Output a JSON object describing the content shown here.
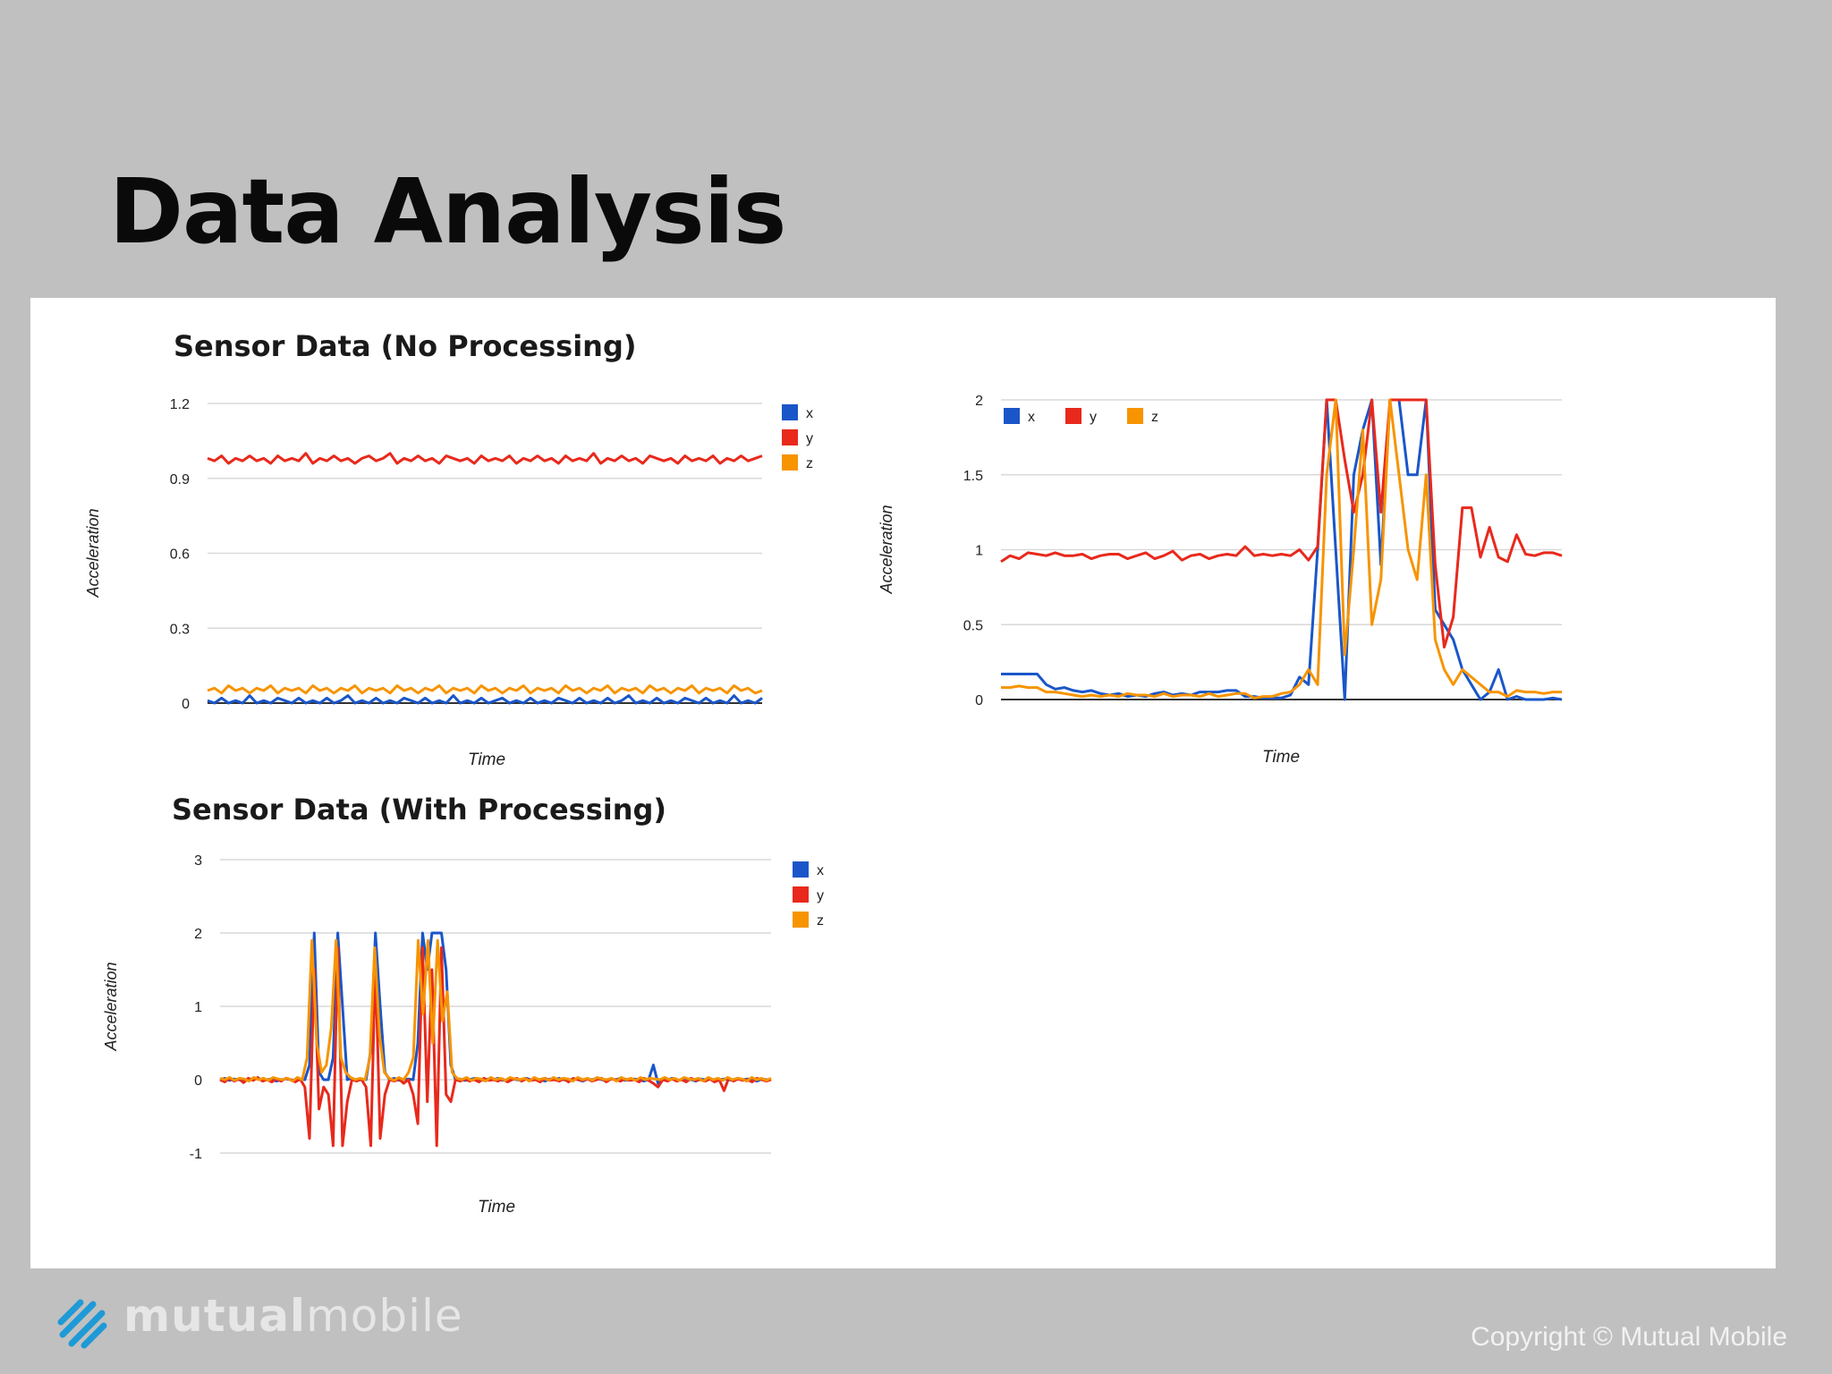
{
  "slide": {
    "title": "Data Analysis",
    "brand": {
      "name_bold": "mutual",
      "name_light": "mobile"
    },
    "copyright": "Copyright © Mutual Mobile"
  },
  "colors": {
    "x": "#1a56c9",
    "y": "#e8291c",
    "z": "#f79400",
    "grid": "#d9d9d9",
    "axis": "#333333"
  },
  "chart_data": [
    {
      "id": "no-processing",
      "type": "line",
      "title": "Sensor Data (No Processing)",
      "xlabel": "Time",
      "ylabel": "Acceleration",
      "ylim": [
        0,
        1.2
      ],
      "yticks": [
        "0",
        "0.3",
        "0.6",
        "0.9",
        "1.2"
      ],
      "grid": true,
      "legend": "right",
      "series": [
        {
          "name": "x",
          "values": [
            0.01,
            0.0,
            0.02,
            0.0,
            0.01,
            0.0,
            0.03,
            0.0,
            0.01,
            0.0,
            0.02,
            0.01,
            0.0,
            0.02,
            0.0,
            0.01,
            0.0,
            0.02,
            0.0,
            0.01,
            0.03,
            0.0,
            0.01,
            0.0,
            0.02,
            0.0,
            0.01,
            0.0,
            0.02,
            0.01,
            0.0,
            0.02,
            0.0,
            0.01,
            0.0,
            0.03,
            0.0,
            0.01,
            0.0,
            0.02,
            0.0,
            0.01,
            0.02,
            0.0,
            0.01,
            0.0,
            0.02,
            0.0,
            0.01,
            0.0,
            0.02,
            0.01,
            0.0,
            0.02,
            0.0,
            0.01,
            0.0,
            0.02,
            0.0,
            0.01,
            0.03,
            0.0,
            0.01,
            0.0,
            0.02,
            0.0,
            0.01,
            0.0,
            0.02,
            0.01,
            0.0,
            0.02,
            0.0,
            0.01,
            0.0,
            0.03,
            0.0,
            0.01,
            0.0,
            0.02
          ]
        },
        {
          "name": "y",
          "values": [
            0.98,
            0.97,
            0.99,
            0.96,
            0.98,
            0.97,
            0.99,
            0.97,
            0.98,
            0.96,
            0.99,
            0.97,
            0.98,
            0.97,
            1.0,
            0.96,
            0.98,
            0.97,
            0.99,
            0.97,
            0.98,
            0.96,
            0.98,
            0.99,
            0.97,
            0.98,
            1.0,
            0.96,
            0.98,
            0.97,
            0.99,
            0.97,
            0.98,
            0.96,
            0.99,
            0.98,
            0.97,
            0.98,
            0.96,
            0.99,
            0.97,
            0.98,
            0.97,
            0.99,
            0.96,
            0.98,
            0.97,
            0.99,
            0.97,
            0.98,
            0.96,
            0.99,
            0.97,
            0.98,
            0.97,
            1.0,
            0.96,
            0.98,
            0.97,
            0.99,
            0.97,
            0.98,
            0.96,
            0.99,
            0.98,
            0.97,
            0.98,
            0.96,
            0.99,
            0.97,
            0.98,
            0.97,
            0.99,
            0.96,
            0.98,
            0.97,
            0.99,
            0.97,
            0.98,
            0.99
          ]
        },
        {
          "name": "z",
          "values": [
            0.05,
            0.06,
            0.04,
            0.07,
            0.05,
            0.06,
            0.04,
            0.06,
            0.05,
            0.07,
            0.04,
            0.06,
            0.05,
            0.06,
            0.04,
            0.07,
            0.05,
            0.06,
            0.04,
            0.06,
            0.05,
            0.07,
            0.04,
            0.06,
            0.05,
            0.06,
            0.04,
            0.07,
            0.05,
            0.06,
            0.04,
            0.06,
            0.05,
            0.07,
            0.04,
            0.06,
            0.05,
            0.06,
            0.04,
            0.07,
            0.05,
            0.06,
            0.04,
            0.06,
            0.05,
            0.07,
            0.04,
            0.06,
            0.05,
            0.06,
            0.04,
            0.07,
            0.05,
            0.06,
            0.04,
            0.06,
            0.05,
            0.07,
            0.04,
            0.06,
            0.05,
            0.06,
            0.04,
            0.07,
            0.05,
            0.06,
            0.04,
            0.06,
            0.05,
            0.07,
            0.04,
            0.06,
            0.05,
            0.06,
            0.04,
            0.07,
            0.05,
            0.06,
            0.04,
            0.05
          ]
        }
      ]
    },
    {
      "id": "zoomed",
      "type": "line",
      "title": "",
      "xlabel": "Time",
      "ylabel": "Acceleration",
      "ylim": [
        0,
        2
      ],
      "yticks": [
        "0",
        "0.5",
        "1",
        "1.5",
        "2"
      ],
      "grid": true,
      "legend": "top-left",
      "series": [
        {
          "name": "x",
          "values": [
            0.17,
            0.17,
            0.17,
            0.17,
            0.17,
            0.1,
            0.07,
            0.08,
            0.06,
            0.05,
            0.06,
            0.04,
            0.03,
            0.04,
            0.02,
            0.03,
            0.02,
            0.04,
            0.05,
            0.03,
            0.04,
            0.03,
            0.05,
            0.05,
            0.05,
            0.06,
            0.06,
            0.02,
            0.02,
            0.01,
            0.01,
            0.01,
            0.03,
            0.15,
            0.1,
            1.0,
            2.0,
            1.0,
            0.0,
            1.5,
            1.8,
            2.0,
            0.9,
            2.0,
            2.0,
            1.5,
            1.5,
            2.0,
            0.6,
            0.5,
            0.4,
            0.2,
            0.1,
            0.0,
            0.05,
            0.2,
            0.0,
            0.02,
            0.0,
            0.0,
            0.0,
            0.01,
            0.0
          ]
        },
        {
          "name": "y",
          "values": [
            0.92,
            0.96,
            0.94,
            0.98,
            0.97,
            0.96,
            0.98,
            0.96,
            0.96,
            0.97,
            0.94,
            0.96,
            0.97,
            0.97,
            0.94,
            0.96,
            0.98,
            0.94,
            0.96,
            0.99,
            0.93,
            0.96,
            0.97,
            0.94,
            0.96,
            0.97,
            0.96,
            1.02,
            0.96,
            0.97,
            0.96,
            0.97,
            0.96,
            1.0,
            0.93,
            1.02,
            2.0,
            2.0,
            1.6,
            1.25,
            1.5,
            2.0,
            1.25,
            2.0,
            2.0,
            2.0,
            2.0,
            2.0,
            0.9,
            0.35,
            0.55,
            1.28,
            1.28,
            0.95,
            1.15,
            0.95,
            0.92,
            1.1,
            0.97,
            0.96,
            0.98,
            0.98,
            0.96
          ]
        },
        {
          "name": "z",
          "values": [
            0.08,
            0.08,
            0.09,
            0.08,
            0.08,
            0.05,
            0.05,
            0.04,
            0.03,
            0.02,
            0.03,
            0.02,
            0.03,
            0.02,
            0.04,
            0.03,
            0.03,
            0.02,
            0.04,
            0.02,
            0.03,
            0.03,
            0.02,
            0.04,
            0.02,
            0.03,
            0.04,
            0.04,
            0.01,
            0.02,
            0.02,
            0.04,
            0.05,
            0.1,
            0.2,
            0.1,
            1.5,
            2.0,
            0.3,
            1.0,
            1.8,
            0.5,
            0.8,
            2.0,
            1.5,
            1.0,
            0.8,
            1.5,
            0.4,
            0.2,
            0.1,
            0.2,
            0.15,
            0.1,
            0.05,
            0.05,
            0.02,
            0.06,
            0.05,
            0.05,
            0.04,
            0.05,
            0.05
          ]
        }
      ]
    },
    {
      "id": "with-processing",
      "type": "line",
      "title": "Sensor Data (With Processing)",
      "xlabel": "Time",
      "ylabel": "Acceleration",
      "ylim": [
        -1,
        3
      ],
      "yticks": [
        "-1",
        "0",
        "1",
        "2",
        "3"
      ],
      "grid": true,
      "legend": "right",
      "series": [
        {
          "name": "x",
          "values": [
            0.0,
            0.02,
            -0.01,
            0.01,
            0.0,
            -0.02,
            0.01,
            0.0,
            0.02,
            -0.01,
            0.0,
            0.01,
            -0.02,
            0.0,
            0.01,
            0.0,
            -0.01,
            0.01,
            0.0,
            0.2,
            2.0,
            0.1,
            0.0,
            0.0,
            0.3,
            2.0,
            1.0,
            0.0,
            0.02,
            -0.01,
            0.0,
            0.0,
            0.4,
            2.0,
            1.0,
            0.1,
            0.0,
            0.02,
            -0.01,
            0.0,
            0.01,
            0.0,
            0.5,
            2.0,
            1.5,
            2.0,
            2.0,
            2.0,
            1.5,
            0.2,
            0.0,
            0.01,
            -0.01,
            0.0,
            0.02,
            0.0,
            -0.01,
            0.01,
            0.0,
            0.02,
            -0.01,
            0.0,
            0.01,
            0.0,
            -0.01,
            0.02,
            0.0,
            0.01,
            0.0,
            -0.02,
            0.01,
            0.0,
            0.02,
            0.0,
            -0.01,
            0.01,
            0.0,
            -0.02,
            0.01,
            0.0,
            0.02,
            0.0,
            -0.01,
            0.01,
            0.0,
            0.02,
            -0.01,
            0.0,
            0.01,
            0.0,
            -0.02,
            0.0,
            0.2,
            -0.05,
            0.01,
            0.0,
            0.02,
            -0.01,
            0.0,
            0.01,
            0.0,
            -0.02,
            0.01,
            0.0,
            0.02,
            -0.01,
            0.0,
            0.01,
            0.0,
            -0.01,
            0.02,
            0.0,
            0.01,
            0.0,
            -0.02,
            0.01,
            0.0,
            0.0
          ]
        },
        {
          "name": "y",
          "values": [
            0.0,
            -0.03,
            0.02,
            -0.02,
            0.01,
            -0.04,
            0.02,
            -0.01,
            0.03,
            -0.02,
            0.0,
            -0.03,
            0.01,
            -0.02,
            0.02,
            0.0,
            -0.03,
            0.01,
            -0.1,
            -0.8,
            1.5,
            -0.4,
            -0.1,
            -0.2,
            -0.9,
            1.8,
            -0.9,
            -0.3,
            0.0,
            -0.02,
            0.01,
            -0.1,
            -0.9,
            1.6,
            -0.8,
            -0.2,
            0.0,
            -0.02,
            0.01,
            -0.05,
            0.0,
            -0.2,
            -0.6,
            1.8,
            -0.3,
            1.5,
            -0.9,
            1.8,
            -0.2,
            -0.3,
            0.0,
            -0.02,
            0.01,
            -0.02,
            0.0,
            -0.03,
            0.02,
            -0.01,
            0.0,
            -0.02,
            0.01,
            -0.03,
            0.0,
            0.02,
            -0.02,
            0.01,
            -0.01,
            0.0,
            -0.03,
            0.02,
            -0.01,
            0.0,
            -0.02,
            0.01,
            -0.03,
            0.02,
            0.0,
            -0.01,
            0.01,
            -0.02,
            0.0,
            0.02,
            -0.03,
            0.01,
            0.0,
            -0.02,
            0.01,
            -0.01,
            0.0,
            -0.03,
            0.02,
            -0.01,
            -0.05,
            -0.1,
            0.0,
            -0.02,
            0.01,
            -0.02,
            0.0,
            -0.03,
            0.02,
            -0.01,
            0.0,
            -0.02,
            0.01,
            -0.03,
            0.0,
            -0.15,
            0.02,
            -0.02,
            0.01,
            -0.01,
            0.0,
            -0.03,
            0.02,
            0.0,
            -0.02,
            0.0
          ]
        },
        {
          "name": "z",
          "values": [
            0.02,
            0.0,
            0.03,
            -0.01,
            0.02,
            0.01,
            -0.02,
            0.03,
            0.0,
            0.02,
            -0.01,
            0.03,
            0.01,
            0.0,
            0.02,
            -0.02,
            0.03,
            0.0,
            0.3,
            1.9,
            0.5,
            0.1,
            0.2,
            0.7,
            1.9,
            0.3,
            0.1,
            0.03,
            0.0,
            0.02,
            0.0,
            0.3,
            1.8,
            0.6,
            0.1,
            0.02,
            -0.01,
            0.03,
            0.0,
            0.1,
            0.3,
            1.9,
            0.9,
            1.9,
            0.5,
            1.9,
            0.8,
            1.2,
            0.1,
            0.02,
            0.0,
            0.03,
            -0.01,
            0.02,
            0.01,
            -0.02,
            0.03,
            0.0,
            0.02,
            -0.01,
            0.03,
            0.01,
            0.0,
            0.02,
            -0.02,
            0.03,
            0.0,
            0.02,
            -0.01,
            0.03,
            0.0,
            0.02,
            0.01,
            -0.02,
            0.03,
            0.0,
            0.02,
            -0.01,
            0.03,
            0.01,
            0.0,
            0.02,
            -0.02,
            0.03,
            0.0,
            0.02,
            -0.01,
            0.03,
            0.0,
            0.02,
            0.01,
            0.0,
            0.03,
            0.0,
            0.02,
            -0.01,
            0.03,
            0.01,
            0.0,
            0.02,
            -0.02,
            0.03,
            0.0,
            0.02,
            -0.01,
            0.03,
            0.0,
            0.02,
            0.01,
            -0.02,
            0.03,
            0.0,
            0.02,
            -0.01,
            0.02
          ]
        }
      ]
    }
  ]
}
